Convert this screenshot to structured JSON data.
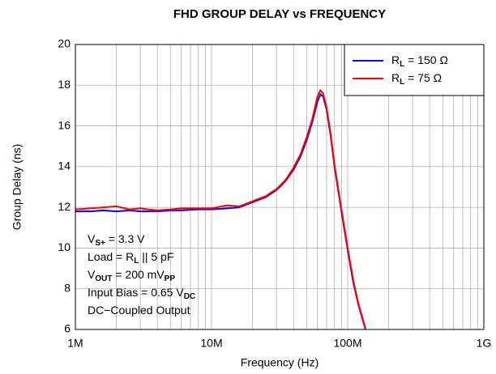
{
  "chart_data": {
    "type": "line",
    "title": "FHD GROUP DELAY vs FREQUENCY",
    "xlabel": "Frequency (Hz)",
    "ylabel": "Group Delay (ns)",
    "xscale": "log",
    "grid": true,
    "legend": "upper right",
    "xlim": [
      1000000,
      1000000000
    ],
    "ylim": [
      6,
      20
    ],
    "xticks": [
      {
        "value": 1000000,
        "label": "1M"
      },
      {
        "value": 10000000,
        "label": "10M"
      },
      {
        "value": 100000000,
        "label": "100M"
      },
      {
        "value": 1000000000,
        "label": "1G"
      }
    ],
    "yticks": [
      6,
      8,
      10,
      12,
      14,
      16,
      18,
      20
    ],
    "annotations": [
      [
        "V",
        "S+",
        " = 3.3 V"
      ],
      [
        "Load = R",
        "L",
        " || 5 pF"
      ],
      [
        "V",
        "OUT",
        " = 200 mV",
        "PP"
      ],
      [
        "Input Bias = 0.65 V",
        "DC"
      ],
      [
        "DC−Coupled Output"
      ]
    ],
    "x": [
      1000000,
      1300000,
      1600000,
      2000000,
      2500000,
      3000000,
      4000000,
      5000000,
      6000000,
      8000000,
      10000000,
      13000000,
      16000000,
      20000000,
      25000000,
      30000000,
      35000000,
      40000000,
      45000000,
      50000000,
      55000000,
      60000000,
      63000000,
      66000000,
      70000000,
      75000000,
      80000000,
      90000000,
      100000000,
      110000000,
      120000000,
      135000000
    ],
    "series": [
      {
        "name": [
          "R",
          "L",
          " = 150 Ω"
        ],
        "color": "#0000ff",
        "values": [
          11.8,
          11.8,
          11.85,
          11.8,
          11.85,
          11.8,
          11.8,
          11.85,
          11.85,
          11.9,
          11.9,
          11.95,
          12.0,
          12.25,
          12.5,
          12.85,
          13.3,
          13.85,
          14.5,
          15.3,
          16.2,
          17.2,
          17.55,
          17.45,
          16.8,
          15.5,
          14.0,
          11.8,
          9.9,
          8.3,
          7.2,
          6.0
        ]
      },
      {
        "name": [
          "R",
          "L",
          " = 75 Ω"
        ],
        "color": "#ff0000",
        "values": [
          11.9,
          11.95,
          12.0,
          12.05,
          11.9,
          11.95,
          11.85,
          11.9,
          11.95,
          11.95,
          11.95,
          12.1,
          12.05,
          12.3,
          12.55,
          12.9,
          13.35,
          13.95,
          14.6,
          15.45,
          16.35,
          17.45,
          17.75,
          17.6,
          16.9,
          15.6,
          14.1,
          11.9,
          10.0,
          8.4,
          7.25,
          6.05
        ]
      }
    ]
  }
}
